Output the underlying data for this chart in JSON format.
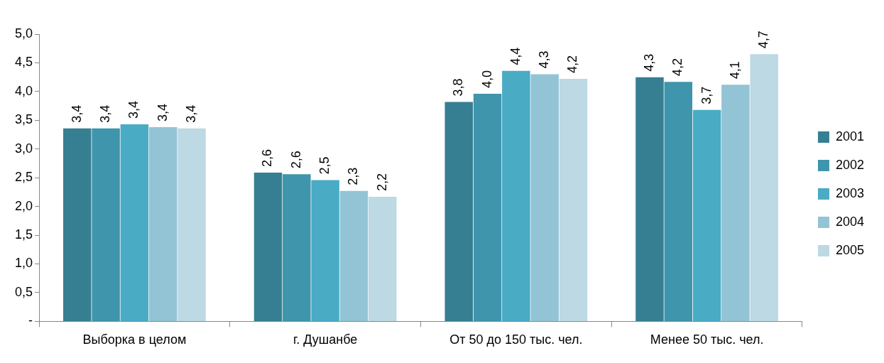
{
  "chart_data": {
    "type": "bar",
    "categories": [
      "Выборка в целом",
      "г. Душанбе",
      "От 50 до 150 тыс. чел.",
      "Менее 50 тыс. чел."
    ],
    "series": [
      {
        "name": "2001",
        "color": "#367f93",
        "values": [
          3.36,
          2.59,
          3.82,
          4.25
        ],
        "value_labels": [
          "3,4",
          "2,6",
          "3,8",
          "4,3"
        ]
      },
      {
        "name": "2002",
        "color": "#3f95ab",
        "values": [
          3.36,
          2.56,
          3.96,
          4.17
        ],
        "value_labels": [
          "3,4",
          "2,6",
          "4,0",
          "4,2"
        ]
      },
      {
        "name": "2003",
        "color": "#4aabc5",
        "values": [
          3.43,
          2.46,
          4.36,
          3.68
        ],
        "value_labels": [
          "3,4",
          "2,5",
          "4,4",
          "3,7"
        ]
      },
      {
        "name": "2004",
        "color": "#93c4d5",
        "values": [
          3.38,
          2.27,
          4.3,
          4.12
        ],
        "value_labels": [
          "3,4",
          "2,3",
          "4,3",
          "4,1"
        ]
      },
      {
        "name": "2005",
        "color": "#bcd9e4",
        "values": [
          3.36,
          2.17,
          4.22,
          4.65
        ],
        "value_labels": [
          "3,4",
          "2,2",
          "4,2",
          "4,7"
        ]
      }
    ],
    "ylim": [
      0,
      5
    ],
    "yticks": [
      {
        "value": 0,
        "label": "-"
      },
      {
        "value": 0.5,
        "label": "0,5"
      },
      {
        "value": 1,
        "label": "1,0"
      },
      {
        "value": 1.5,
        "label": "1,5"
      },
      {
        "value": 2,
        "label": "2,0"
      },
      {
        "value": 2.5,
        "label": "2,5"
      },
      {
        "value": 3,
        "label": "3,0"
      },
      {
        "value": 3.5,
        "label": "3,5"
      },
      {
        "value": 4,
        "label": "4,0"
      },
      {
        "value": 4.5,
        "label": "4,5"
      },
      {
        "value": 5,
        "label": "5,0"
      }
    ],
    "grid": false,
    "legend": "right"
  }
}
